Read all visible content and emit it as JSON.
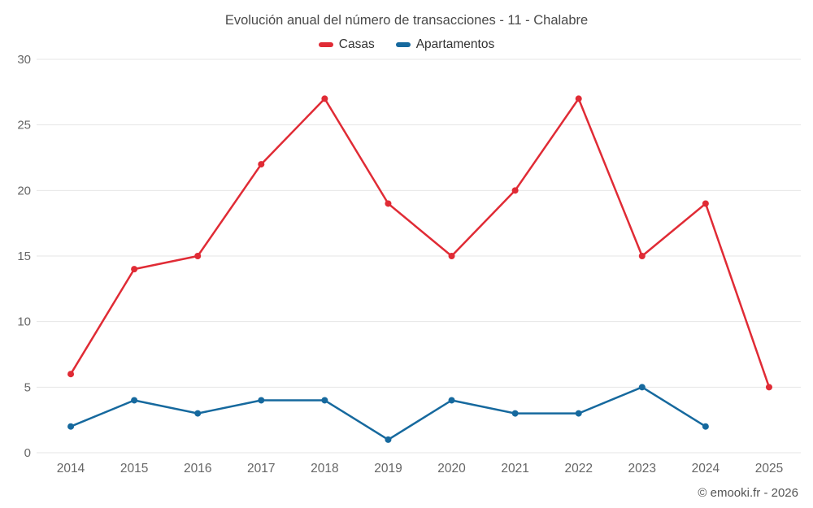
{
  "chart_data": {
    "type": "line",
    "title": "Evolución anual del número de transacciones - 11 - Chalabre",
    "categories": [
      "2014",
      "2015",
      "2016",
      "2017",
      "2018",
      "2019",
      "2020",
      "2021",
      "2022",
      "2023",
      "2024",
      "2025"
    ],
    "series": [
      {
        "name": "Casas",
        "color": "#e02b35",
        "values": [
          6,
          14,
          15,
          22,
          27,
          19,
          15,
          20,
          27,
          15,
          19,
          5
        ]
      },
      {
        "name": "Apartamentos",
        "color": "#16699e",
        "values": [
          2,
          4,
          3,
          4,
          4,
          1,
          4,
          3,
          3,
          5,
          2,
          null
        ]
      }
    ],
    "xlabel": "",
    "ylabel": "",
    "ylim": [
      0,
      30
    ],
    "yticks": [
      0,
      5,
      10,
      15,
      20,
      25,
      30
    ],
    "grid": true,
    "grid_color": "#e6e6e6",
    "legend_position": "top"
  },
  "footer": {
    "watermark": "© emooki.fr - 2026"
  }
}
